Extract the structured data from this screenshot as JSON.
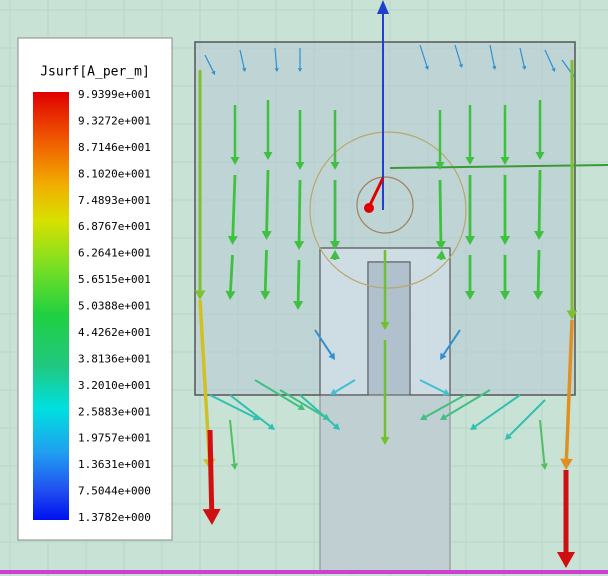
{
  "legend": {
    "title": "Jsurf[A_per_m]",
    "labels": [
      "9.9399e+001",
      "9.3272e+001",
      "8.7146e+001",
      "8.1020e+001",
      "7.4893e+001",
      "6.8767e+001",
      "6.2641e+001",
      "5.6515e+001",
      "5.0388e+001",
      "4.4262e+001",
      "3.8136e+001",
      "3.2010e+001",
      "2.5883e+001",
      "1.9757e+001",
      "1.3631e+001",
      "7.5044e+000",
      "1.3782e+000"
    ]
  }
}
